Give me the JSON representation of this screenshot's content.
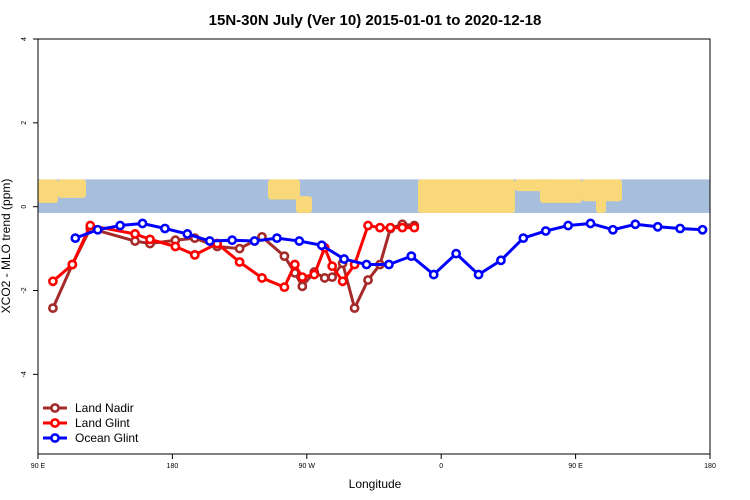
{
  "chart_data": {
    "type": "line",
    "title": "15N-30N July (Ver 10)   2015-01-01 to 2020-12-18",
    "xlabel": "Longitude",
    "ylabel": "XCO2 - MLO trend (ppm)",
    "x_ticks": [
      {
        "value": 90,
        "label": "90 E"
      },
      {
        "value": 180,
        "label": "180"
      },
      {
        "value": 270,
        "label": "90 W"
      },
      {
        "value": 360,
        "label": "0"
      },
      {
        "value": 450,
        "label": "90 E"
      },
      {
        "value": 540,
        "label": "180"
      }
    ],
    "y_ticks": [
      {
        "value": 4,
        "label": "4"
      },
      {
        "value": 2,
        "label": "2"
      },
      {
        "value": 0,
        "label": "0"
      },
      {
        "value": -2,
        "label": "-2"
      },
      {
        "value": -4,
        "label": "-4"
      }
    ],
    "xlim": [
      90,
      540
    ],
    "ylim": [
      -5.9,
      4.0
    ],
    "map_band": {
      "ymin": -0.15,
      "ymax": 0.65,
      "ocean_color": "#a8bedd",
      "land_color": "#f8d878"
    },
    "legend_position": "bottom-left",
    "grid": false,
    "series": [
      {
        "name": "Land Nadir",
        "color": "#a52a2a",
        "x": [
          100,
          113,
          125,
          155,
          165,
          182,
          195,
          210,
          225,
          240,
          255,
          262,
          267,
          275,
          282,
          287,
          294,
          302,
          311,
          319,
          326,
          334,
          342
        ],
        "y": [
          -2.42,
          -1.38,
          -0.52,
          -0.82,
          -0.88,
          -0.8,
          -0.75,
          -0.95,
          -1.0,
          -0.72,
          -1.18,
          -1.58,
          -1.9,
          -1.56,
          -1.7,
          -1.68,
          -1.35,
          -2.42,
          -1.75,
          -1.38,
          -0.52,
          -0.42,
          -0.45
        ]
      },
      {
        "name": "Land Glint",
        "color": "#ff0000",
        "x": [
          100,
          113,
          125,
          155,
          165,
          182,
          195,
          210,
          225,
          240,
          255,
          262,
          267,
          275,
          282,
          287,
          294,
          302,
          311,
          319,
          326,
          334,
          342
        ],
        "y": [
          -1.78,
          -1.38,
          -0.45,
          -0.65,
          -0.78,
          -0.95,
          -1.15,
          -0.88,
          -1.32,
          -1.7,
          -1.92,
          -1.38,
          -1.68,
          -1.62,
          -0.98,
          -1.42,
          -1.78,
          -1.38,
          -0.45,
          -0.5,
          -0.5,
          -0.5,
          -0.5
        ]
      },
      {
        "name": "Ocean Glint",
        "color": "#0000ff",
        "x": [
          115,
          130,
          145,
          160,
          175,
          190,
          205,
          220,
          235,
          250,
          265,
          280,
          295,
          310,
          325,
          340,
          355,
          370,
          385,
          400,
          415,
          430,
          445,
          460,
          475,
          490,
          505,
          520,
          535
        ],
        "y": [
          -0.75,
          -0.55,
          -0.45,
          -0.4,
          -0.52,
          -0.65,
          -0.82,
          -0.8,
          -0.82,
          -0.75,
          -0.82,
          -0.92,
          -1.25,
          -1.38,
          -1.38,
          -1.18,
          -1.62,
          -1.12,
          -1.62,
          -1.28,
          -0.75,
          -0.58,
          -0.45,
          -0.4,
          -0.55,
          -0.42,
          -0.48,
          -0.52,
          -0.55
        ]
      }
    ]
  }
}
